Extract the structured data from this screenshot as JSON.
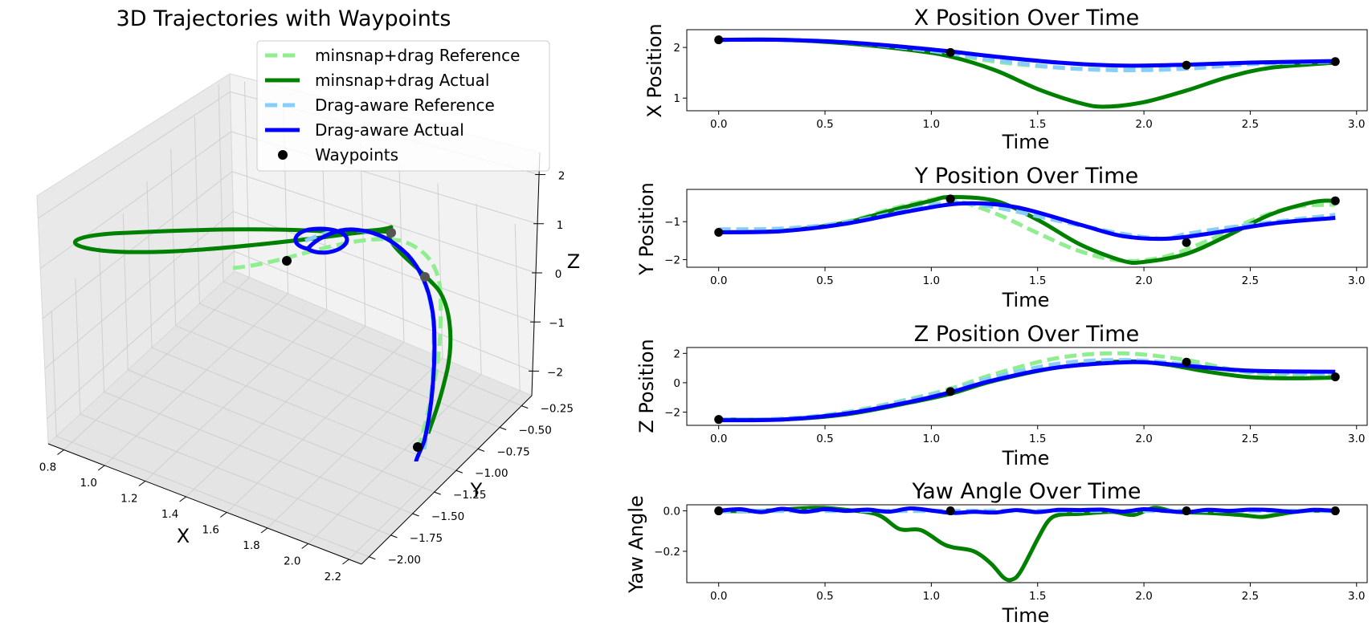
{
  "chart_data": [
    {
      "type": "line3d",
      "title": "3D Trajectories with Waypoints",
      "xlabel": "X",
      "ylabel": "Y",
      "zlabel": "Z",
      "xlim": [
        0.8,
        2.2
      ],
      "ylim": [
        -2.0,
        -0.25
      ],
      "zlim": [
        -2,
        2
      ],
      "x_ticks": [
        "0.8",
        "1.0",
        "1.2",
        "1.4",
        "1.6",
        "1.8",
        "2.0",
        "2.2"
      ],
      "y_ticks": [
        "-0.25",
        "-0.50",
        "-0.75",
        "-1.00",
        "-1.25",
        "-1.50",
        "-1.75",
        "-2.00"
      ],
      "z_ticks": [
        "2",
        "1",
        "0",
        "-1",
        "-2"
      ],
      "legend": [
        {
          "label": "minsnap+drag Reference",
          "color": "#90ee90",
          "style": "dashed"
        },
        {
          "label": "minsnap+drag Actual",
          "color": "#008000",
          "style": "solid"
        },
        {
          "label": "Drag-aware Reference",
          "color": "#87cefa",
          "style": "dashed"
        },
        {
          "label": "Drag-aware Actual",
          "color": "#0000ff",
          "style": "solid"
        },
        {
          "label": "Waypoints",
          "color": "#000000",
          "style": "marker"
        }
      ],
      "waypoints": [
        [
          2.15,
          -1.28,
          -2.5
        ],
        [
          1.9,
          -0.4,
          -0.6
        ],
        [
          1.65,
          -1.55,
          1.4
        ],
        [
          1.72,
          -0.45,
          0.4
        ]
      ]
    },
    {
      "type": "line",
      "title": "X Position Over Time",
      "xlabel": "Time",
      "ylabel": "X Position",
      "xlim": [
        -0.15,
        3.05
      ],
      "ylim": [
        0.75,
        2.35
      ],
      "x_ticks": [
        "0.0",
        "0.5",
        "1.0",
        "1.5",
        "2.0",
        "2.5",
        "3.0"
      ],
      "y_ticks": [
        "1",
        "2"
      ],
      "waypoints": {
        "t": [
          0,
          1.09,
          2.2,
          2.9
        ],
        "v": [
          2.15,
          1.9,
          1.65,
          1.72
        ]
      },
      "series": [
        {
          "name": "minsnap+drag Reference",
          "color": "#90ee90",
          "t": [
            0,
            0.3,
            0.6,
            0.9,
            1.09,
            1.3,
            1.6,
            1.9,
            2.2,
            2.5,
            2.9
          ],
          "values": [
            2.15,
            2.15,
            2.1,
            1.97,
            1.87,
            1.72,
            1.6,
            1.56,
            1.6,
            1.68,
            1.72
          ]
        },
        {
          "name": "minsnap+drag Actual",
          "color": "#008000",
          "t": [
            0,
            0.3,
            0.6,
            0.9,
            1.09,
            1.3,
            1.5,
            1.7,
            1.82,
            2.0,
            2.2,
            2.4,
            2.6,
            2.9
          ],
          "values": [
            2.15,
            2.15,
            2.08,
            1.95,
            1.82,
            1.55,
            1.18,
            0.9,
            0.83,
            0.92,
            1.15,
            1.42,
            1.6,
            1.7
          ]
        },
        {
          "name": "Drag-aware Reference",
          "color": "#87cefa",
          "t": [
            0,
            0.3,
            0.6,
            0.9,
            1.09,
            1.3,
            1.6,
            1.9,
            2.2,
            2.5,
            2.9
          ],
          "values": [
            2.15,
            2.15,
            2.1,
            1.98,
            1.88,
            1.75,
            1.6,
            1.55,
            1.58,
            1.67,
            1.72
          ]
        },
        {
          "name": "Drag-aware Actual",
          "color": "#0000ff",
          "t": [
            0,
            0.3,
            0.6,
            0.9,
            1.09,
            1.3,
            1.6,
            1.9,
            2.2,
            2.5,
            2.9
          ],
          "values": [
            2.15,
            2.15,
            2.1,
            2.0,
            1.92,
            1.82,
            1.7,
            1.64,
            1.66,
            1.7,
            1.73
          ]
        }
      ]
    },
    {
      "type": "line",
      "title": "Y Position Over Time",
      "xlabel": "Time",
      "ylabel": "Y Position",
      "xlim": [
        -0.15,
        3.05
      ],
      "ylim": [
        -2.2,
        -0.15
      ],
      "x_ticks": [
        "0.0",
        "0.5",
        "1.0",
        "1.5",
        "2.0",
        "2.5",
        "3.0"
      ],
      "y_ticks": [
        "-1",
        "-2"
      ],
      "waypoints": {
        "t": [
          0,
          1.09,
          2.2,
          2.9
        ],
        "v": [
          -1.28,
          -0.4,
          -1.55,
          -0.45
        ]
      },
      "series": [
        {
          "name": "minsnap+drag Reference",
          "color": "#90ee90",
          "t": [
            0,
            0.3,
            0.6,
            0.8,
            1.0,
            1.09,
            1.3,
            1.5,
            1.7,
            1.9,
            2.1,
            2.3,
            2.5,
            2.7,
            2.9
          ],
          "values": [
            -1.28,
            -1.22,
            -1.0,
            -0.68,
            -0.42,
            -0.4,
            -0.78,
            -1.3,
            -1.78,
            -2.03,
            -1.92,
            -1.5,
            -0.98,
            -0.62,
            -0.55
          ]
        },
        {
          "name": "minsnap+drag Actual",
          "color": "#008000",
          "t": [
            0,
            0.3,
            0.6,
            0.8,
            1.0,
            1.09,
            1.3,
            1.5,
            1.7,
            1.9,
            2.0,
            2.2,
            2.4,
            2.6,
            2.8,
            2.9
          ],
          "values": [
            -1.28,
            -1.24,
            -1.02,
            -0.72,
            -0.45,
            -0.35,
            -0.45,
            -0.95,
            -1.6,
            -2.03,
            -2.06,
            -1.85,
            -1.35,
            -0.8,
            -0.48,
            -0.45
          ]
        },
        {
          "name": "Drag-aware Reference",
          "color": "#87cefa",
          "t": [
            0,
            0.3,
            0.6,
            0.9,
            1.09,
            1.3,
            1.6,
            1.9,
            2.1,
            2.2,
            2.5,
            2.9
          ],
          "values": [
            -1.2,
            -1.18,
            -1.02,
            -0.68,
            -0.5,
            -0.62,
            -0.98,
            -1.32,
            -1.45,
            -1.32,
            -1.08,
            -0.82
          ]
        },
        {
          "name": "Drag-aware Actual",
          "color": "#0000ff",
          "t": [
            0,
            0.3,
            0.6,
            0.9,
            1.15,
            1.4,
            1.7,
            1.9,
            2.1,
            2.3,
            2.6,
            2.9
          ],
          "values": [
            -1.28,
            -1.25,
            -1.05,
            -0.72,
            -0.52,
            -0.62,
            -1.08,
            -1.38,
            -1.45,
            -1.32,
            -1.05,
            -0.9
          ]
        }
      ]
    },
    {
      "type": "line",
      "title": "Z Position Over Time",
      "xlabel": "Time",
      "ylabel": "Z Position",
      "xlim": [
        -0.15,
        3.05
      ],
      "ylim": [
        -2.9,
        2.4
      ],
      "x_ticks": [
        "0.0",
        "0.5",
        "1.0",
        "1.5",
        "2.0",
        "2.5",
        "3.0"
      ],
      "y_ticks": [
        "2",
        "0",
        "-2"
      ],
      "waypoints": {
        "t": [
          0,
          1.09,
          2.2,
          2.9
        ],
        "v": [
          -2.5,
          -0.6,
          1.4,
          0.4
        ]
      },
      "series": [
        {
          "name": "minsnap+drag Reference",
          "color": "#90ee90",
          "t": [
            0,
            0.3,
            0.6,
            0.9,
            1.09,
            1.3,
            1.6,
            1.9,
            2.2,
            2.5,
            2.9
          ],
          "values": [
            -2.5,
            -2.45,
            -2.0,
            -1.1,
            -0.4,
            0.6,
            1.7,
            2.0,
            1.55,
            0.7,
            0.45
          ]
        },
        {
          "name": "minsnap+drag Actual",
          "color": "#008000",
          "t": [
            0,
            0.3,
            0.6,
            0.9,
            1.09,
            1.3,
            1.6,
            1.9,
            2.1,
            2.3,
            2.5,
            2.7,
            2.9
          ],
          "values": [
            -2.5,
            -2.5,
            -2.15,
            -1.35,
            -0.75,
            0.15,
            1.05,
            1.45,
            1.25,
            0.75,
            0.38,
            0.3,
            0.35
          ]
        },
        {
          "name": "Drag-aware Reference",
          "color": "#87cefa",
          "t": [
            0,
            0.3,
            0.6,
            0.9,
            1.09,
            1.3,
            1.6,
            1.9,
            2.2,
            2.5,
            2.9
          ],
          "values": [
            -2.5,
            -2.45,
            -2.05,
            -1.15,
            -0.5,
            0.4,
            1.3,
            1.55,
            1.25,
            0.75,
            0.6
          ]
        },
        {
          "name": "Drag-aware Actual",
          "color": "#0000ff",
          "t": [
            0,
            0.3,
            0.6,
            0.9,
            1.09,
            1.3,
            1.6,
            1.95,
            2.2,
            2.5,
            2.9
          ],
          "values": [
            -2.55,
            -2.5,
            -2.1,
            -1.3,
            -0.65,
            0.2,
            1.05,
            1.4,
            1.15,
            0.82,
            0.75
          ]
        }
      ]
    },
    {
      "type": "line",
      "title": "Yaw Angle Over Time",
      "xlabel": "Time",
      "ylabel": "Yaw Angle",
      "xlim": [
        -0.15,
        3.05
      ],
      "ylim": [
        -0.355,
        0.03
      ],
      "x_ticks": [
        "0.0",
        "0.5",
        "1.0",
        "1.5",
        "2.0",
        "2.5",
        "3.0"
      ],
      "y_ticks": [
        "0.0",
        "-0.2"
      ],
      "waypoints": {
        "t": [
          0,
          1.09,
          2.2,
          2.9
        ],
        "v": [
          0,
          0,
          0,
          0
        ]
      },
      "series": [
        {
          "name": "minsnap+drag Reference",
          "color": "#90ee90",
          "t": [
            0,
            2.9
          ],
          "values": [
            0,
            0
          ]
        },
        {
          "name": "minsnap+drag Actual",
          "color": "#008000",
          "t": [
            0,
            0.2,
            0.45,
            0.6,
            0.75,
            0.85,
            0.95,
            1.05,
            1.1,
            1.2,
            1.28,
            1.34,
            1.38,
            1.42,
            1.5,
            1.55,
            1.6,
            1.7,
            1.85,
            1.95,
            2.05,
            2.15,
            2.3,
            2.45,
            2.55,
            2.62,
            2.75,
            2.9
          ],
          "values": [
            0,
            0,
            0.015,
            0.005,
            -0.02,
            -0.09,
            -0.095,
            -0.16,
            -0.18,
            -0.2,
            -0.26,
            -0.33,
            -0.34,
            -0.3,
            -0.14,
            -0.05,
            -0.02,
            -0.015,
            -0.005,
            -0.02,
            0.015,
            -0.005,
            -0.01,
            -0.02,
            -0.03,
            -0.02,
            0,
            0
          ]
        },
        {
          "name": "Drag-aware Reference",
          "color": "#87cefa",
          "t": [
            0,
            2.9
          ],
          "values": [
            0,
            0
          ]
        },
        {
          "name": "Drag-aware Actual",
          "color": "#0000ff",
          "t": [
            0,
            0.1,
            0.2,
            0.3,
            0.4,
            0.5,
            0.6,
            0.7,
            0.8,
            0.9,
            1.0,
            1.1,
            1.2,
            1.3,
            1.4,
            1.5,
            1.6,
            1.7,
            1.8,
            1.9,
            2.0,
            2.1,
            2.2,
            2.3,
            2.4,
            2.5,
            2.6,
            2.7,
            2.8,
            2.9
          ],
          "values": [
            0,
            0.008,
            -0.006,
            0.01,
            -0.005,
            0.008,
            0,
            0.006,
            -0.004,
            0.012,
            0.002,
            -0.01,
            -0.005,
            -0.008,
            0.004,
            -0.006,
            0.005,
            0.004,
            0.006,
            -0.004,
            0.008,
            0,
            -0.006,
            0.005,
            0,
            0.006,
            0.004,
            -0.005,
            0.005,
            0
          ]
        }
      ]
    }
  ]
}
